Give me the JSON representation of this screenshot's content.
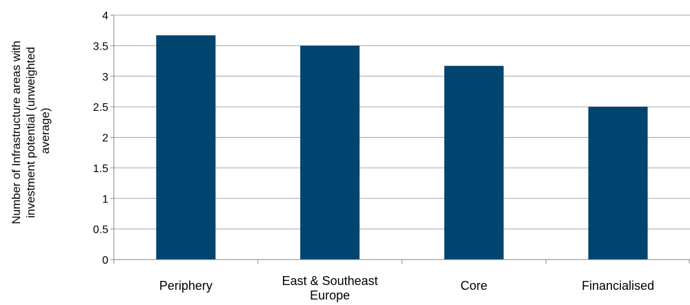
{
  "chart_data": {
    "type": "bar",
    "categories": [
      "Periphery",
      "East & Southeast Europe",
      "Core",
      "Financialised"
    ],
    "category_lines": [
      [
        "Periphery"
      ],
      [
        "East & Southeast",
        "Europe"
      ],
      [
        "Core"
      ],
      [
        "Financialised"
      ]
    ],
    "values": [
      3.67,
      3.5,
      3.17,
      2.5
    ],
    "ylabel_lines": [
      "Number of Infrastructure areas with",
      "investment potential (unweighted",
      "average)"
    ],
    "ylim": [
      0,
      4
    ],
    "yticks": [
      0,
      0.5,
      1,
      1.5,
      2,
      2.5,
      3,
      3.5,
      4
    ],
    "ytick_labels": [
      "0",
      "0.5",
      "1",
      "1.5",
      "2",
      "2.5",
      "3",
      "3.5",
      "4"
    ],
    "grid": true,
    "legend": "none",
    "colors": {
      "bar": "#004470",
      "grid": "#a6a6a6",
      "axis": "#868686"
    }
  }
}
